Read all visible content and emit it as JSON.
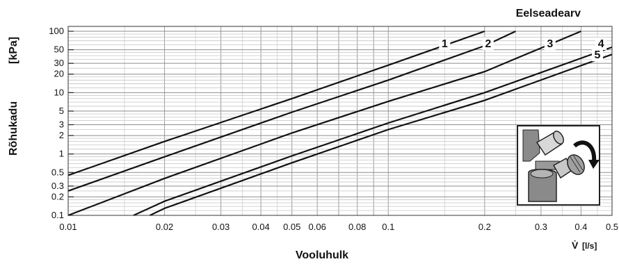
{
  "chart_data": {
    "type": "line",
    "title": "Eelseadearv",
    "xlabel": "Vooluhulk",
    "xunit_symbol": "V̇",
    "xunit": "[l/s]",
    "ylabel": "Rõhukadu",
    "yunit": "[kPa]",
    "xscale": "log",
    "yscale": "log",
    "xlim": [
      0.01,
      0.5
    ],
    "ylim": [
      0.1,
      120
    ],
    "grid": true,
    "x_tick_labels": [
      "0.01",
      "0.02",
      "0.03",
      "0.04",
      "0.05",
      "0.06",
      "0.08",
      "0.1",
      "0.2",
      "0.3",
      "0.4",
      "0.5"
    ],
    "y_tick_labels": [
      "0.1",
      "0.2",
      "0.3",
      "0.5",
      "1",
      "2",
      "3",
      "5",
      "10",
      "20",
      "30",
      "50",
      "100"
    ],
    "series": [
      {
        "name": "1",
        "x": [
          0.01,
          0.02,
          0.05,
          0.1,
          0.2
        ],
        "y": [
          0.45,
          1.6,
          8,
          28,
          100
        ]
      },
      {
        "name": "2",
        "x": [
          0.01,
          0.02,
          0.05,
          0.1,
          0.2,
          0.25
        ],
        "y": [
          0.25,
          0.9,
          4.8,
          16,
          58,
          100
        ]
      },
      {
        "name": "3",
        "x": [
          0.01,
          0.02,
          0.05,
          0.1,
          0.2,
          0.4
        ],
        "y": [
          0.1,
          0.4,
          2.2,
          7.2,
          22,
          100
        ]
      },
      {
        "name": "4",
        "x": [
          0.016,
          0.02,
          0.05,
          0.1,
          0.2,
          0.5
        ],
        "y": [
          0.1,
          0.17,
          0.93,
          3.2,
          10,
          55
        ]
      },
      {
        "name": "5",
        "x": [
          0.018,
          0.02,
          0.05,
          0.1,
          0.2,
          0.5
        ],
        "y": [
          0.1,
          0.13,
          0.72,
          2.5,
          7.5,
          42
        ]
      }
    ]
  },
  "icons": {
    "inset": "valve-knob-icon"
  }
}
